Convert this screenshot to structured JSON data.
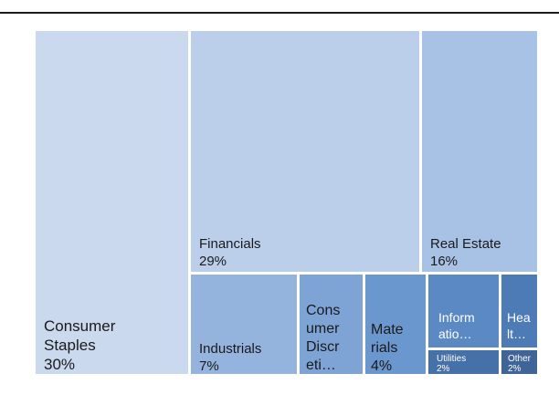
{
  "chart_data": {
    "type": "treemap",
    "title": "",
    "nodes": [
      {
        "name": "Consumer Staples",
        "value": 30,
        "label_lines": [
          "Consumer",
          "Staples",
          "30%"
        ],
        "color": "#cbd9ef"
      },
      {
        "name": "Financials",
        "value": 29,
        "label_lines": [
          "Financials",
          "29%"
        ],
        "color": "#bccfea"
      },
      {
        "name": "Real Estate",
        "value": 16,
        "label_lines": [
          "Real Estate",
          "16%"
        ],
        "color": "#a8c2e5"
      },
      {
        "name": "Industrials",
        "value": 7,
        "label_lines": [
          "Industrials",
          "7%"
        ],
        "color": "#94b4de"
      },
      {
        "name": "Consumer Discretionary",
        "value": 5,
        "label_lines": [
          "Cons",
          "umer",
          "Discr",
          "eti…"
        ],
        "color": "#7ea4d6"
      },
      {
        "name": "Materials",
        "value": 4,
        "label_lines": [
          "Mate",
          "rials",
          "4%"
        ],
        "color": "#6b97cf"
      },
      {
        "name": "Information Technology",
        "value": 3,
        "label_lines": [
          "Inform",
          "atio…"
        ],
        "color": "#5a89c4"
      },
      {
        "name": "Health Care",
        "value": 2,
        "label_lines": [
          "Hea",
          "lt…"
        ],
        "color": "#4d7bb6"
      },
      {
        "name": "Utilities",
        "value": 2,
        "label_lines": [
          "Utilities",
          "2%"
        ],
        "color": "#4670a8"
      },
      {
        "name": "Other",
        "value": 2,
        "label_lines": [
          "Other",
          "2%"
        ],
        "color": "#3f6598"
      }
    ]
  }
}
